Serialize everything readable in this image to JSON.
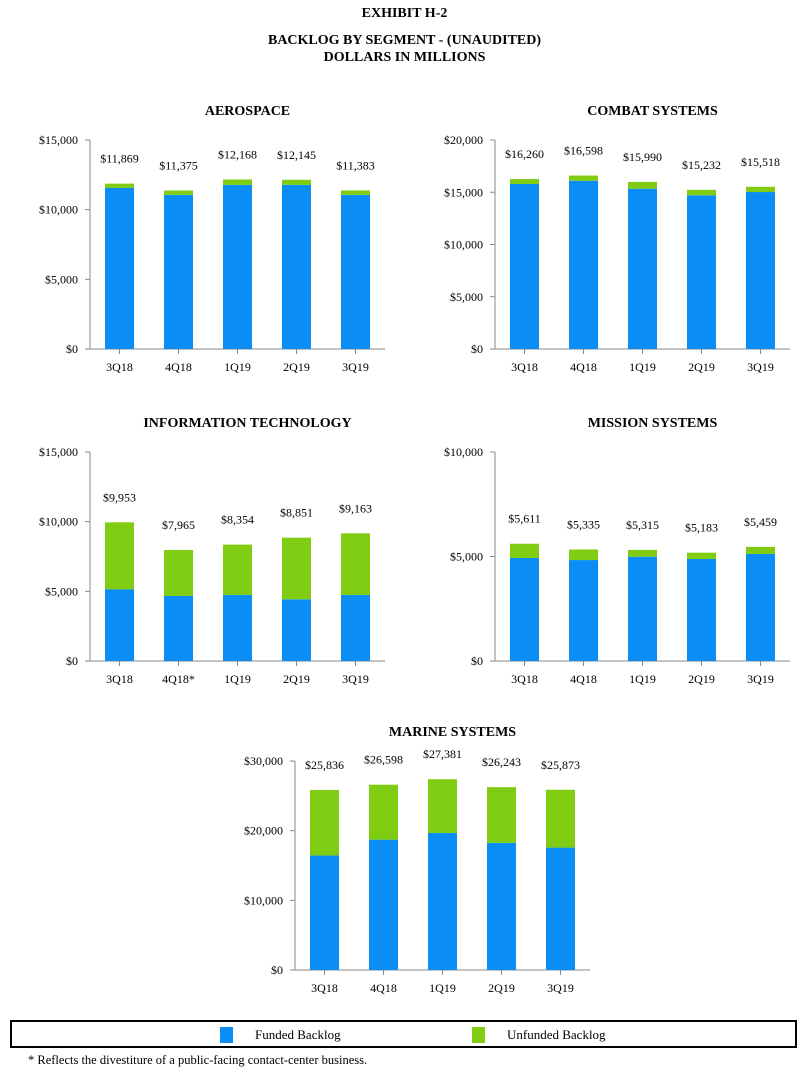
{
  "header": {
    "exhibit": "EXHIBIT H-2",
    "title": "BACKLOG BY SEGMENT - (UNAUDITED)",
    "subtitle": "DOLLARS IN MILLIONS"
  },
  "colors": {
    "funded": "#0a8ef5",
    "unfunded": "#7fcc12",
    "axis": "#888888"
  },
  "chart_data": [
    {
      "type": "bar",
      "stacked": true,
      "title": "AEROSPACE",
      "categories": [
        "3Q18",
        "4Q18",
        "1Q19",
        "2Q19",
        "3Q19"
      ],
      "series": [
        {
          "name": "Funded Backlog",
          "values": [
            11560,
            11060,
            11780,
            11780,
            11060
          ]
        },
        {
          "name": "Unfunded Backlog",
          "values": [
            309,
            315,
            388,
            365,
            323
          ]
        }
      ],
      "totals": [
        11869,
        11375,
        12168,
        12145,
        11383
      ],
      "total_labels": [
        "$11,869",
        "$11,375",
        "$12,168",
        "$12,145",
        "$11,383"
      ],
      "ylim": [
        0,
        15000
      ],
      "yticks": [
        0,
        5000,
        10000,
        15000
      ],
      "ytick_labels": [
        "$0",
        "$5,000",
        "$10,000",
        "$15,000"
      ],
      "xlabel": "",
      "ylabel": "",
      "grid": false
    },
    {
      "type": "bar",
      "stacked": true,
      "title": "COMBAT SYSTEMS",
      "categories": [
        "3Q18",
        "4Q18",
        "1Q19",
        "2Q19",
        "3Q19"
      ],
      "series": [
        {
          "name": "Funded Backlog",
          "values": [
            15790,
            16100,
            15340,
            14710,
            15020
          ]
        },
        {
          "name": "Unfunded Backlog",
          "values": [
            470,
            498,
            650,
            522,
            498
          ]
        }
      ],
      "totals": [
        16260,
        16598,
        15990,
        15232,
        15518
      ],
      "total_labels": [
        "$16,260",
        "$16,598",
        "$15,990",
        "$15,232",
        "$15,518"
      ],
      "ylim": [
        0,
        20000
      ],
      "yticks": [
        0,
        5000,
        10000,
        15000,
        20000
      ],
      "ytick_labels": [
        "$0",
        "$5,000",
        "$10,000",
        "$15,000",
        "$20,000"
      ],
      "xlabel": "",
      "ylabel": "",
      "grid": false
    },
    {
      "type": "bar",
      "stacked": true,
      "title": "INFORMATION TECHNOLOGY",
      "categories": [
        "3Q18",
        "4Q18*",
        "1Q19",
        "2Q19",
        "3Q19"
      ],
      "series": [
        {
          "name": "Funded Backlog",
          "values": [
            5150,
            4670,
            4740,
            4430,
            4740
          ]
        },
        {
          "name": "Unfunded Backlog",
          "values": [
            4803,
            3295,
            3614,
            4421,
            4423
          ]
        }
      ],
      "totals": [
        9953,
        7965,
        8354,
        8851,
        9163
      ],
      "total_labels": [
        "$9,953",
        "$7,965",
        "$8,354",
        "$8,851",
        "$9,163"
      ],
      "ylim": [
        0,
        15000
      ],
      "yticks": [
        0,
        5000,
        10000,
        15000
      ],
      "ytick_labels": [
        "$0",
        "$5,000",
        "$10,000",
        "$15,000"
      ],
      "xlabel": "",
      "ylabel": "",
      "grid": false
    },
    {
      "type": "bar",
      "stacked": true,
      "title": "MISSION SYSTEMS",
      "categories": [
        "3Q18",
        "4Q18",
        "1Q19",
        "2Q19",
        "3Q19"
      ],
      "series": [
        {
          "name": "Funded Backlog",
          "values": [
            4930,
            4830,
            4990,
            4880,
            5120
          ]
        },
        {
          "name": "Unfunded Backlog",
          "values": [
            681,
            505,
            325,
            303,
            339
          ]
        }
      ],
      "totals": [
        5611,
        5335,
        5315,
        5183,
        5459
      ],
      "total_labels": [
        "$5,611",
        "$5,335",
        "$5,315",
        "$5,183",
        "$5,459"
      ],
      "ylim": [
        0,
        10000
      ],
      "yticks": [
        0,
        5000,
        10000
      ],
      "ytick_labels": [
        "$0",
        "$5,000",
        "$10,000"
      ],
      "xlabel": "",
      "ylabel": "",
      "grid": false
    },
    {
      "type": "bar",
      "stacked": true,
      "title": "MARINE SYSTEMS",
      "categories": [
        "3Q18",
        "4Q18",
        "1Q19",
        "2Q19",
        "3Q19"
      ],
      "series": [
        {
          "name": "Funded Backlog",
          "values": [
            16430,
            18710,
            19670,
            18240,
            17570
          ]
        },
        {
          "name": "Unfunded Backlog",
          "values": [
            9406,
            7888,
            7711,
            8003,
            8303
          ]
        }
      ],
      "totals": [
        25836,
        26598,
        27381,
        26243,
        25873
      ],
      "total_labels": [
        "$25,836",
        "$26,598",
        "$27,381",
        "$26,243",
        "$25,873"
      ],
      "ylim": [
        0,
        30000
      ],
      "yticks": [
        0,
        10000,
        20000,
        30000
      ],
      "ytick_labels": [
        "$0",
        "$10,000",
        "$20,000",
        "$30,000"
      ],
      "xlabel": "",
      "ylabel": "",
      "grid": false
    }
  ],
  "legend": {
    "position": "bottom",
    "items": [
      {
        "label": "Funded Backlog",
        "color": "#0a8ef5"
      },
      {
        "label": "Unfunded Backlog",
        "color": "#7fcc12"
      }
    ]
  },
  "footnote": "*  Reflects the divestiture of a public-facing contact-center business."
}
